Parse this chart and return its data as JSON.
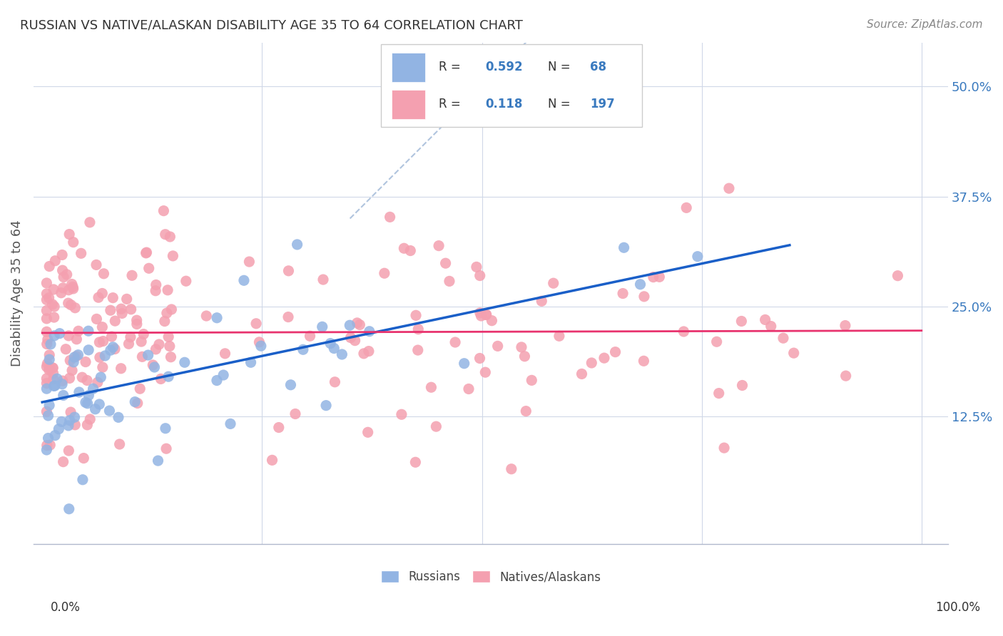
{
  "title": "RUSSIAN VS NATIVE/ALASKAN DISABILITY AGE 35 TO 64 CORRELATION CHART",
  "source": "Source: ZipAtlas.com",
  "ylabel": "Disability Age 35 to 64",
  "ytick_vals": [
    0.125,
    0.25,
    0.375,
    0.5
  ],
  "xlim": [
    0.0,
    1.0
  ],
  "ylim": [
    -0.02,
    0.55
  ],
  "russian_R": 0.592,
  "russian_N": 68,
  "native_R": 0.118,
  "native_N": 197,
  "russian_color": "#92b4e3",
  "native_color": "#f4a0b0",
  "russian_line_color": "#1a5fc8",
  "native_line_color": "#e8336e",
  "diagonal_color": "#b0c4de"
}
